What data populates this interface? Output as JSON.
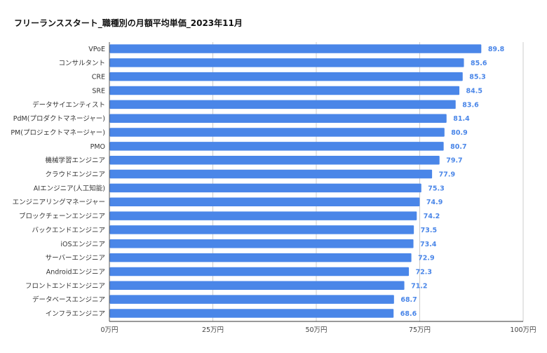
{
  "chart_data": {
    "type": "bar",
    "orientation": "horizontal",
    "title": "フリーランススタート_職種別の月額平均単価_2023年11月",
    "categories": [
      "VPoE",
      "コンサルタント",
      "CRE",
      "SRE",
      "データサイエンティスト",
      "PdM(プロダクトマネージャー)",
      "PM(プロジェクトマネージャー)",
      "PMO",
      "機械学習エンジニア",
      "クラウドエンジニア",
      "AIエンジニア(人工知能)",
      "エンジニアリングマネージャー",
      "ブロックチェーンエンジニア",
      "バックエンドエンジニア",
      "iOSエンジニア",
      "サーバーエンジニア",
      "Androidエンジニア",
      "フロントエンドエンジニア",
      "データベースエンジニア",
      "インフラエンジニア"
    ],
    "values": [
      89.8,
      85.6,
      85.3,
      84.5,
      83.6,
      81.4,
      80.9,
      80.7,
      79.7,
      77.9,
      75.3,
      74.9,
      74.2,
      73.5,
      73.4,
      72.9,
      72.3,
      71.2,
      68.7,
      68.6
    ],
    "value_labels": [
      "89.8",
      "85.6",
      "85.3",
      "84.5",
      "83.6",
      "81.4",
      "80.9",
      "80.7",
      "79.7",
      "77.9",
      "75.3",
      "74.9",
      "74.2",
      "73.5",
      "73.4",
      "72.9",
      "72.3",
      "71.2",
      "68.7",
      "68.6"
    ],
    "xlim": [
      0,
      100
    ],
    "x_ticks": [
      0,
      25,
      50,
      75,
      100
    ],
    "x_tick_labels": [
      "0万円",
      "25万円",
      "50万円",
      "75万円",
      "100万円"
    ],
    "grid": true,
    "bar_color": "#4a86e8",
    "label_color": "#4a86e8"
  }
}
